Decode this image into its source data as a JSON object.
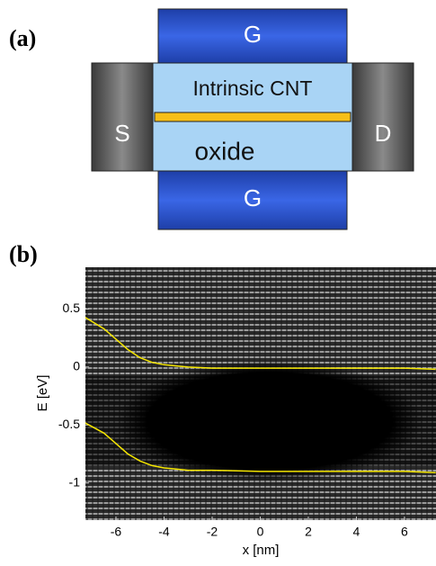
{
  "panel_a": {
    "label": "(a)",
    "gate_top": "G",
    "channel": "Intrinsic CNT",
    "source": "S",
    "drain": "D",
    "oxide": "oxide",
    "gate_bottom": "G"
  },
  "chart_data": {
    "type": "line",
    "panel_label": "(b)",
    "xlabel": "x [nm]",
    "ylabel": "E [eV]",
    "x": [
      -7.3,
      -6.5,
      -6,
      -5.5,
      -5,
      -4.5,
      -4,
      -3.5,
      -3,
      -2,
      0,
      2,
      4,
      6,
      7.3
    ],
    "series": [
      {
        "color": "#f5e600",
        "values": [
          0.43,
          0.33,
          0.24,
          0.15,
          0.08,
          0.04,
          0.02,
          0.01,
          0.0,
          -0.01,
          -0.01,
          -0.01,
          -0.01,
          -0.01,
          -0.02
        ]
      },
      {
        "color": "#f5e600",
        "values": [
          -0.48,
          -0.57,
          -0.66,
          -0.75,
          -0.81,
          -0.85,
          -0.87,
          -0.88,
          -0.89,
          -0.89,
          -0.9,
          -0.9,
          -0.9,
          -0.9,
          -0.91
        ]
      }
    ],
    "xlim": [
      -7.27,
      7.31
    ],
    "ylim": [
      -1.32,
      0.86
    ],
    "xticks": [
      -6,
      -4,
      -2,
      0,
      2,
      4,
      6
    ],
    "yticks": [
      0.5,
      0,
      -0.5,
      -1
    ]
  }
}
